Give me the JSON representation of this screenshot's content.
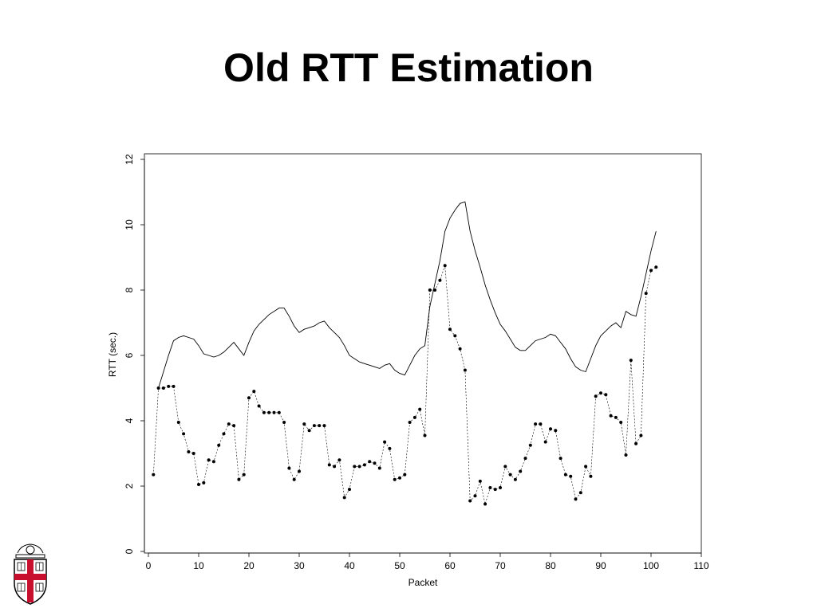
{
  "slide": {
    "title": "Old RTT Estimation"
  },
  "chart_data": {
    "type": "line",
    "title": "",
    "xlabel": "Packet",
    "ylabel": "RTT (sec.)",
    "xlim": [
      0,
      110
    ],
    "ylim": [
      0,
      12
    ],
    "xticks": [
      0,
      10,
      20,
      30,
      40,
      50,
      60,
      70,
      80,
      90,
      100,
      110
    ],
    "yticks": [
      0,
      2,
      4,
      6,
      8,
      10,
      12
    ],
    "grid": false,
    "legend": "none",
    "series": [
      {
        "style": "solid",
        "x": [
          2,
          3,
          4,
          5,
          6,
          7,
          8,
          9,
          10,
          11,
          12,
          13,
          14,
          15,
          16,
          17,
          18,
          19,
          20,
          21,
          22,
          23,
          24,
          25,
          26,
          27,
          28,
          29,
          30,
          31,
          32,
          33,
          34,
          35,
          36,
          37,
          38,
          39,
          40,
          41,
          42,
          43,
          44,
          45,
          46,
          47,
          48,
          49,
          50,
          51,
          52,
          53,
          54,
          55,
          56,
          57,
          58,
          59,
          60,
          61,
          62,
          63,
          64,
          65,
          66,
          67,
          68,
          69,
          70,
          71,
          72,
          73,
          74,
          75,
          76,
          77,
          78,
          79,
          80,
          81,
          82,
          83,
          84,
          85,
          86,
          87,
          88,
          89,
          90,
          91,
          92,
          93,
          94,
          95,
          96,
          97,
          98,
          99,
          100,
          101
        ],
        "y": [
          5.0,
          5.5,
          6.0,
          6.45,
          6.55,
          6.6,
          6.55,
          6.5,
          6.3,
          6.05,
          6.0,
          5.95,
          6.0,
          6.1,
          6.25,
          6.4,
          6.2,
          6.0,
          6.4,
          6.75,
          6.95,
          7.1,
          7.25,
          7.35,
          7.45,
          7.45,
          7.2,
          6.9,
          6.7,
          6.8,
          6.85,
          6.9,
          7.0,
          7.05,
          6.85,
          6.7,
          6.55,
          6.3,
          6.0,
          5.9,
          5.8,
          5.75,
          5.7,
          5.65,
          5.6,
          5.7,
          5.75,
          5.55,
          5.45,
          5.4,
          5.7,
          6.0,
          6.2,
          6.3,
          7.5,
          8.2,
          8.9,
          9.8,
          10.2,
          10.45,
          10.65,
          10.7,
          9.8,
          9.2,
          8.7,
          8.15,
          7.7,
          7.3,
          6.95,
          6.75,
          6.5,
          6.25,
          6.15,
          6.15,
          6.3,
          6.45,
          6.5,
          6.55,
          6.65,
          6.6,
          6.4,
          6.2,
          5.9,
          5.65,
          5.55,
          5.5,
          5.9,
          6.3,
          6.6,
          6.75,
          6.9,
          7.0,
          6.85,
          7.35,
          7.25,
          7.2,
          7.8,
          8.5,
          9.2,
          9.8
        ]
      },
      {
        "style": "dotted-markers",
        "x": [
          1,
          2,
          3,
          4,
          5,
          6,
          7,
          8,
          9,
          10,
          11,
          12,
          13,
          14,
          15,
          16,
          17,
          18,
          19,
          20,
          21,
          22,
          23,
          24,
          25,
          26,
          27,
          28,
          29,
          30,
          31,
          32,
          33,
          34,
          35,
          36,
          37,
          38,
          39,
          40,
          41,
          42,
          43,
          44,
          45,
          46,
          47,
          48,
          49,
          50,
          51,
          52,
          53,
          54,
          55,
          56,
          57,
          58,
          59,
          60,
          61,
          62,
          63,
          64,
          65,
          66,
          67,
          68,
          69,
          70,
          71,
          72,
          73,
          74,
          75,
          76,
          77,
          78,
          79,
          80,
          81,
          82,
          83,
          84,
          85,
          86,
          87,
          88,
          89,
          90,
          91,
          92,
          93,
          94,
          95,
          96,
          97,
          98,
          99,
          100,
          101
        ],
        "y": [
          2.35,
          5.0,
          5.0,
          5.05,
          5.05,
          3.95,
          3.6,
          3.05,
          3.0,
          2.05,
          2.1,
          2.8,
          2.75,
          3.25,
          3.6,
          3.9,
          3.85,
          2.2,
          2.35,
          4.7,
          4.9,
          4.45,
          4.25,
          4.25,
          4.25,
          4.25,
          3.95,
          2.55,
          2.2,
          2.45,
          3.9,
          3.7,
          3.85,
          3.85,
          3.85,
          2.65,
          2.6,
          2.8,
          1.65,
          1.9,
          2.6,
          2.6,
          2.65,
          2.75,
          2.7,
          2.55,
          3.35,
          3.15,
          2.2,
          2.25,
          2.35,
          3.95,
          4.1,
          4.35,
          3.55,
          8.0,
          8.0,
          8.3,
          8.75,
          6.8,
          6.6,
          6.2,
          5.55,
          1.55,
          1.7,
          2.15,
          1.45,
          1.95,
          1.9,
          1.95,
          2.6,
          2.35,
          2.2,
          2.45,
          2.85,
          3.25,
          3.9,
          3.9,
          3.35,
          3.75,
          3.7,
          2.85,
          2.35,
          2.3,
          1.6,
          1.8,
          2.6,
          2.3,
          4.75,
          4.85,
          4.8,
          4.15,
          4.1,
          3.95,
          2.95,
          5.85,
          3.3,
          3.55,
          7.9,
          8.6,
          8.7
        ]
      }
    ]
  },
  "logo": {
    "icon": "university-shield-icon"
  }
}
